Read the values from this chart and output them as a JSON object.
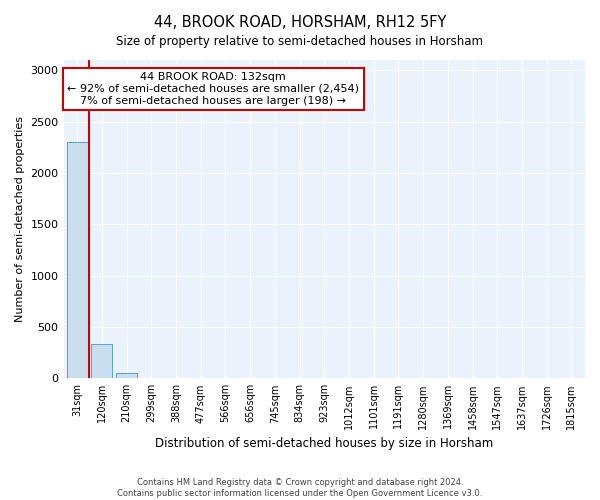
{
  "title": "44, BROOK ROAD, HORSHAM, RH12 5FY",
  "subtitle": "Size of property relative to semi-detached houses in Horsham",
  "xlabel": "Distribution of semi-detached houses by size in Horsham",
  "ylabel": "Number of semi-detached properties",
  "categories": [
    "31sqm",
    "120sqm",
    "210sqm",
    "299sqm",
    "388sqm",
    "477sqm",
    "566sqm",
    "656sqm",
    "745sqm",
    "834sqm",
    "923sqm",
    "1012sqm",
    "1101sqm",
    "1191sqm",
    "1280sqm",
    "1369sqm",
    "1458sqm",
    "1547sqm",
    "1637sqm",
    "1726sqm",
    "1815sqm"
  ],
  "values": [
    2300,
    330,
    50,
    0,
    0,
    0,
    0,
    0,
    0,
    0,
    0,
    0,
    0,
    0,
    0,
    0,
    0,
    0,
    0,
    0,
    0
  ],
  "bar_color": "#c9dff0",
  "bar_edge_color": "#5a9fd4",
  "annotation_line1": "44 BROOK ROAD: 132sqm",
  "annotation_line2": "← 92% of semi-detached houses are smaller (2,454)",
  "annotation_line3": "7% of semi-detached houses are larger (198) →",
  "property_line_x": 0.5,
  "annotation_box_color": "#ffffff",
  "annotation_box_edge": "#cc0000",
  "line_color": "#cc0000",
  "ylim": [
    0,
    3100
  ],
  "yticks": [
    0,
    500,
    1000,
    1500,
    2000,
    2500,
    3000
  ],
  "footer_line1": "Contains HM Land Registry data © Crown copyright and database right 2024.",
  "footer_line2": "Contains public sector information licensed under the Open Government Licence v3.0."
}
